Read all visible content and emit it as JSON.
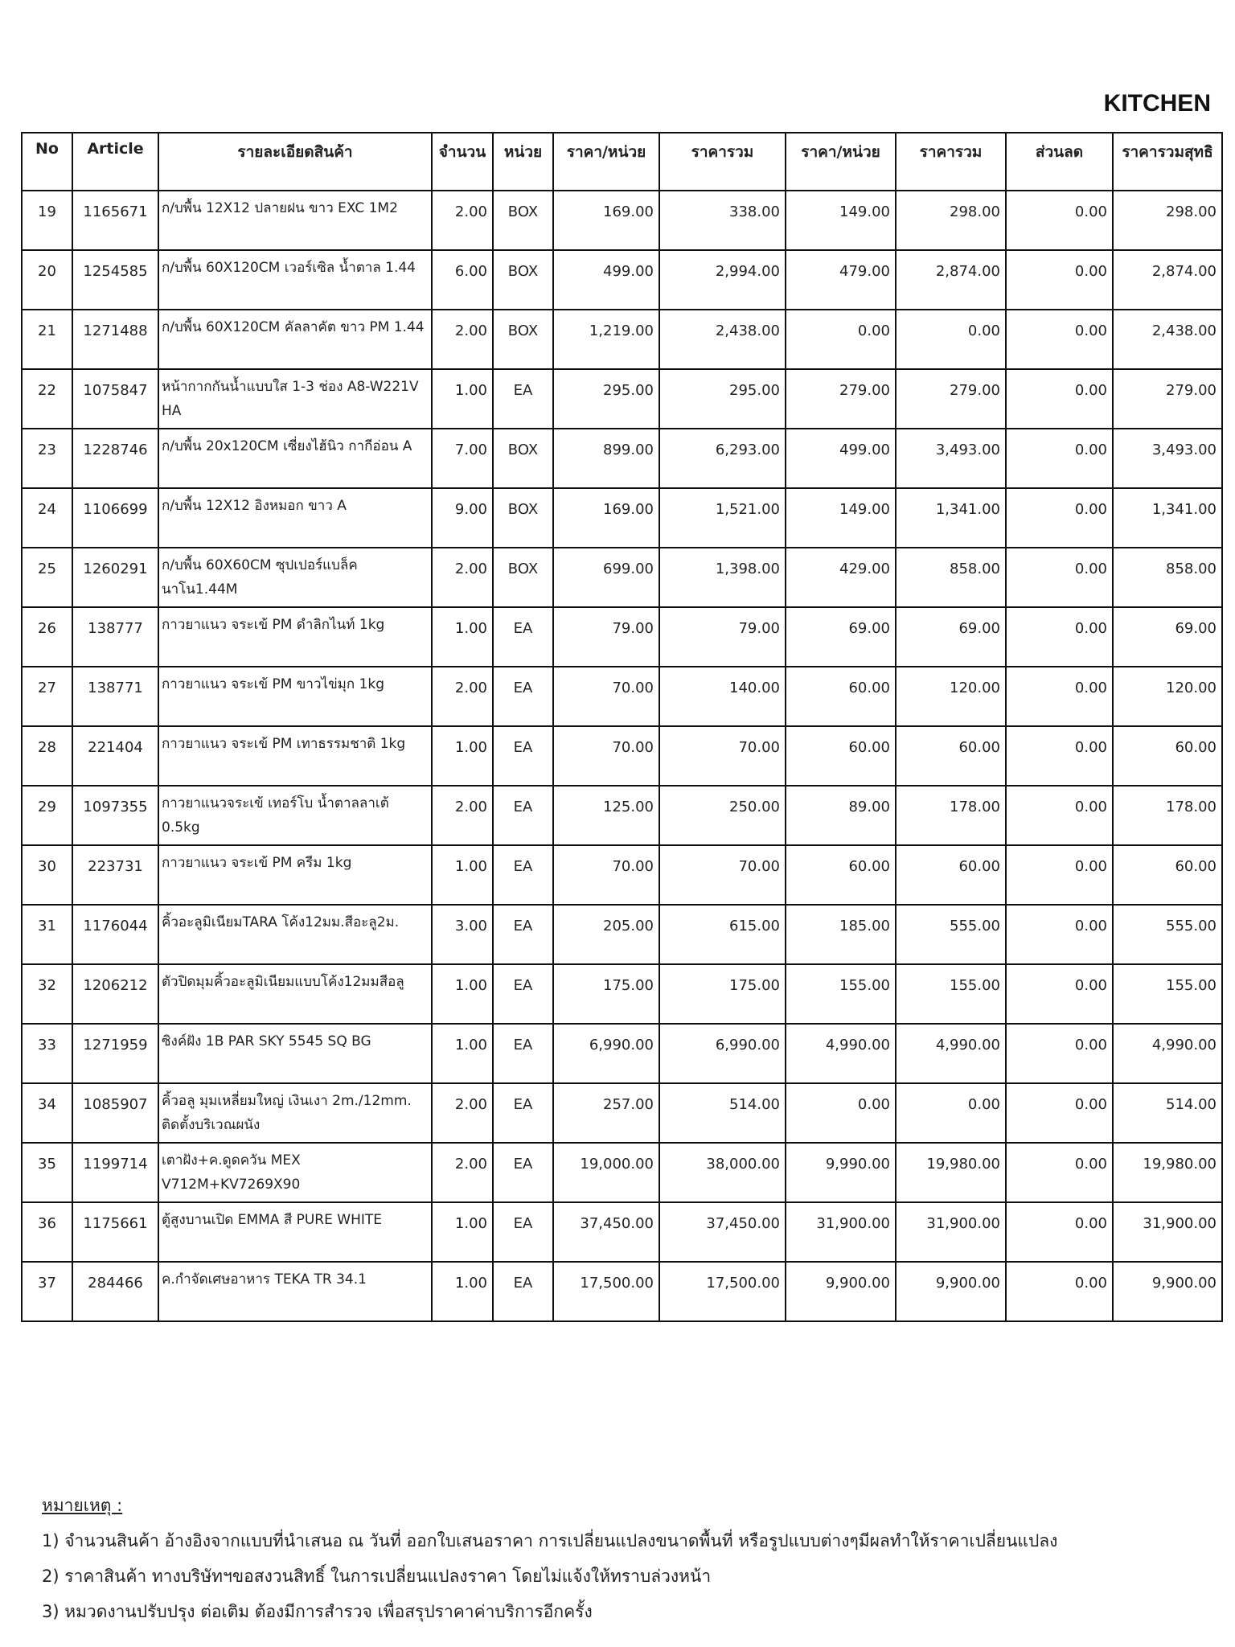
{
  "title": "KITCHEN",
  "table": {
    "headers": [
      "No",
      "Article",
      "รายละเอียดสินค้า",
      "จำนวน",
      "หน่วย",
      "ราคา/หน่วย",
      "ราคารวม",
      "ราคา/หน่วย",
      "ราคารวม",
      "ส่วนลด",
      "ราคารวมสุทธิ"
    ],
    "rows": [
      [
        "19",
        "1165671",
        "ก/บพื้น 12X12 ปลายฝน ขาว EXC 1M2",
        "2.00",
        "BOX",
        "169.00",
        "338.00",
        "149.00",
        "298.00",
        "0.00",
        "298.00"
      ],
      [
        "20",
        "1254585",
        "ก/บพื้น 60X120CM เวอร์เซิล น้ำตาล 1.44",
        "6.00",
        "BOX",
        "499.00",
        "2,994.00",
        "479.00",
        "2,874.00",
        "0.00",
        "2,874.00"
      ],
      [
        "21",
        "1271488",
        "ก/บพื้น 60X120CM คัลลาคัต ขาว PM 1.44",
        "2.00",
        "BOX",
        "1,219.00",
        "2,438.00",
        "0.00",
        "0.00",
        "0.00",
        "2,438.00"
      ],
      [
        "22",
        "1075847",
        "หน้ากากกันน้ำแบบใส 1-3 ช่อง A8-W221V HA",
        "1.00",
        "EA",
        "295.00",
        "295.00",
        "279.00",
        "279.00",
        "0.00",
        "279.00"
      ],
      [
        "23",
        "1228746",
        "ก/บพื้น 20x120CM เซี่ยงไฮ้นิว กากีอ่อน A",
        "7.00",
        "BOX",
        "899.00",
        "6,293.00",
        "499.00",
        "3,493.00",
        "0.00",
        "3,493.00"
      ],
      [
        "24",
        "1106699",
        "ก/บพื้น 12X12 อิงหมอก ขาว A",
        "9.00",
        "BOX",
        "169.00",
        "1,521.00",
        "149.00",
        "1,341.00",
        "0.00",
        "1,341.00"
      ],
      [
        "25",
        "1260291",
        "ก/บพื้น 60X60CM ซุปเปอร์แบล็ค นาโน1.44M",
        "2.00",
        "BOX",
        "699.00",
        "1,398.00",
        "429.00",
        "858.00",
        "0.00",
        "858.00"
      ],
      [
        "26",
        "138777",
        "กาวยาแนว จระเข้ PM ดำลิกไนท์ 1kg",
        "1.00",
        "EA",
        "79.00",
        "79.00",
        "69.00",
        "69.00",
        "0.00",
        "69.00"
      ],
      [
        "27",
        "138771",
        "กาวยาแนว จระเข้ PM ขาวไข่มุก 1kg",
        "2.00",
        "EA",
        "70.00",
        "140.00",
        "60.00",
        "120.00",
        "0.00",
        "120.00"
      ],
      [
        "28",
        "221404",
        "กาวยาแนว จระเข้ PM เทาธรรมชาติ 1kg",
        "1.00",
        "EA",
        "70.00",
        "70.00",
        "60.00",
        "60.00",
        "0.00",
        "60.00"
      ],
      [
        "29",
        "1097355",
        "กาวยาแนวจระเข้ เทอร์โบ น้ำตาลลาเต้ 0.5kg",
        "2.00",
        "EA",
        "125.00",
        "250.00",
        "89.00",
        "178.00",
        "0.00",
        "178.00"
      ],
      [
        "30",
        "223731",
        "กาวยาแนว จระเข้ PM ครีม 1kg",
        "1.00",
        "EA",
        "70.00",
        "70.00",
        "60.00",
        "60.00",
        "0.00",
        "60.00"
      ],
      [
        "31",
        "1176044",
        "คิ้วอะลูมิเนียมTARA โค้ง12มม.สีอะลู2ม.",
        "3.00",
        "EA",
        "205.00",
        "615.00",
        "185.00",
        "555.00",
        "0.00",
        "555.00"
      ],
      [
        "32",
        "1206212",
        "ตัวปิดมุมคิ้วอะลูมิเนียมแบบโค้ง12มมสีอลู",
        "1.00",
        "EA",
        "175.00",
        "175.00",
        "155.00",
        "155.00",
        "0.00",
        "155.00"
      ],
      [
        "33",
        "1271959",
        "ซิงค์ฝัง 1B PAR SKY 5545 SQ BG",
        "1.00",
        "EA",
        "6,990.00",
        "6,990.00",
        "4,990.00",
        "4,990.00",
        "0.00",
        "4,990.00"
      ],
      [
        "34",
        "1085907",
        "คิ้วอลู มุมเหลี่ยมใหญ่ เงินเงา 2m./12mm. ติดตั้งบริเวณผนัง",
        "2.00",
        "EA",
        "257.00",
        "514.00",
        "0.00",
        "0.00",
        "0.00",
        "514.00"
      ],
      [
        "35",
        "1199714",
        "เตาฝัง+ค.ดูดควัน MEX V712M+KV7269X90",
        "2.00",
        "EA",
        "19,000.00",
        "38,000.00",
        "9,990.00",
        "19,980.00",
        "0.00",
        "19,980.00"
      ],
      [
        "36",
        "1175661",
        "ตู้สูงบานเปิด EMMA สี PURE WHITE",
        "1.00",
        "EA",
        "37,450.00",
        "37,450.00",
        "31,900.00",
        "31,900.00",
        "0.00",
        "31,900.00"
      ],
      [
        "37",
        "284466",
        "ค.กำจัดเศษอาหาร TEKA TR 34.1",
        "1.00",
        "EA",
        "17,500.00",
        "17,500.00",
        "9,900.00",
        "9,900.00",
        "0.00",
        "9,900.00"
      ]
    ]
  },
  "notes": {
    "heading": "หมายเหตุ :",
    "lines": [
      "1) จำนวนสินค้า อ้างอิงจากแบบที่นำเสนอ ณ วันที่ ออกใบเสนอราคา การเปลี่ยนแปลงขนาดพื้นที่ หรือรูปแบบต่างๆมีผลทำให้ราคาเปลี่ยนแปลง",
      "2) ราคาสินค้า ทางบริษัทฯขอสงวนสิทธิ์ ในการเปลี่ยนแปลงราคา โดยไม่แจ้งให้ทราบล่วงหน้า",
      "3) หมวดงานปรับปรุง ต่อเติม ต้องมีการสำรวจ เพื่อสรุปราคาค่าบริการอีกครั้ง"
    ]
  }
}
